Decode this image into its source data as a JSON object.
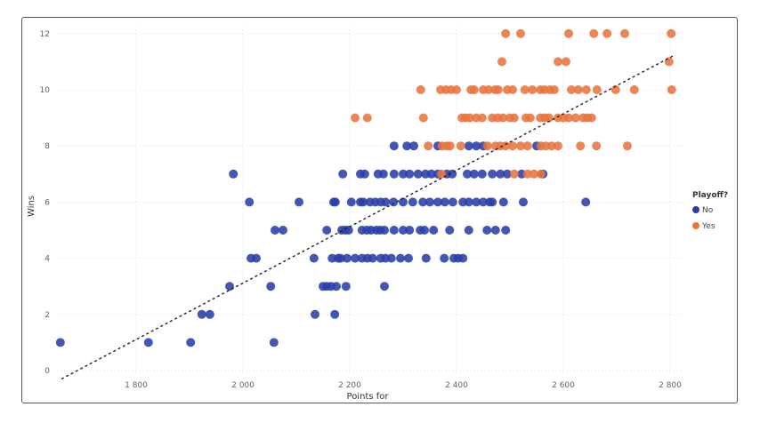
{
  "chart_data": {
    "type": "scatter",
    "xlabel": "Points for",
    "ylabel": "Wins",
    "xlim": [
      1650,
      2820
    ],
    "ylim": [
      0,
      12
    ],
    "x_ticks": [
      1800,
      2000,
      2200,
      2400,
      2600,
      2800
    ],
    "x_tick_labels": [
      "1 800",
      "2 000",
      "2 200",
      "2 400",
      "2 600",
      "2 800"
    ],
    "y_ticks": [
      0,
      2,
      4,
      6,
      8,
      10,
      12
    ],
    "y_tick_labels": [
      "0",
      "2",
      "4",
      "6",
      "8",
      "10",
      "12"
    ],
    "grid": true,
    "legend": {
      "title": "Playoff?",
      "placement": "right",
      "entries": [
        "No",
        "Yes"
      ]
    },
    "colors": {
      "No": "#2a3fa8",
      "Yes": "#e8743f"
    },
    "trendline": {
      "x": [
        1660,
        2805
      ],
      "y": [
        -0.3,
        11.2
      ],
      "style": "dashed"
    },
    "series": [
      {
        "name": "No",
        "points": [
          [
            1658,
            1
          ],
          [
            1823,
            1
          ],
          [
            1902,
            1
          ],
          [
            2058,
            1
          ],
          [
            1923,
            2
          ],
          [
            1938,
            2
          ],
          [
            2135,
            2
          ],
          [
            2172,
            2
          ],
          [
            1975,
            3
          ],
          [
            2052,
            3
          ],
          [
            2150,
            3
          ],
          [
            2157,
            3
          ],
          [
            2165,
            3
          ],
          [
            2175,
            3
          ],
          [
            2193,
            3
          ],
          [
            2265,
            3
          ],
          [
            2015,
            4
          ],
          [
            2025,
            4
          ],
          [
            2133,
            4
          ],
          [
            2167,
            4
          ],
          [
            2178,
            4
          ],
          [
            2183,
            4
          ],
          [
            2195,
            4
          ],
          [
            2210,
            4
          ],
          [
            2223,
            4
          ],
          [
            2233,
            4
          ],
          [
            2243,
            4
          ],
          [
            2258,
            4
          ],
          [
            2267,
            4
          ],
          [
            2278,
            4
          ],
          [
            2295,
            4
          ],
          [
            2310,
            4
          ],
          [
            2343,
            4
          ],
          [
            2377,
            4
          ],
          [
            2395,
            4
          ],
          [
            2403,
            4
          ],
          [
            2412,
            4
          ],
          [
            2060,
            5
          ],
          [
            2075,
            5
          ],
          [
            2157,
            5
          ],
          [
            2185,
            5
          ],
          [
            2192,
            5
          ],
          [
            2198,
            5
          ],
          [
            2223,
            5
          ],
          [
            2232,
            5
          ],
          [
            2240,
            5
          ],
          [
            2250,
            5
          ],
          [
            2257,
            5
          ],
          [
            2265,
            5
          ],
          [
            2283,
            5
          ],
          [
            2300,
            5
          ],
          [
            2312,
            5
          ],
          [
            2332,
            5
          ],
          [
            2340,
            5
          ],
          [
            2357,
            5
          ],
          [
            2387,
            5
          ],
          [
            2423,
            5
          ],
          [
            2457,
            5
          ],
          [
            2473,
            5
          ],
          [
            2492,
            5
          ],
          [
            2012,
            6
          ],
          [
            2105,
            6
          ],
          [
            2170,
            6
          ],
          [
            2173,
            6
          ],
          [
            2203,
            6
          ],
          [
            2220,
            6
          ],
          [
            2225,
            6
          ],
          [
            2238,
            6
          ],
          [
            2248,
            6
          ],
          [
            2258,
            6
          ],
          [
            2267,
            6
          ],
          [
            2282,
            6
          ],
          [
            2300,
            6
          ],
          [
            2318,
            6
          ],
          [
            2337,
            6
          ],
          [
            2350,
            6
          ],
          [
            2365,
            6
          ],
          [
            2378,
            6
          ],
          [
            2393,
            6
          ],
          [
            2412,
            6
          ],
          [
            2423,
            6
          ],
          [
            2437,
            6
          ],
          [
            2450,
            6
          ],
          [
            2462,
            6
          ],
          [
            2467,
            6
          ],
          [
            2488,
            6
          ],
          [
            2525,
            6
          ],
          [
            2642,
            6
          ],
          [
            1982,
            7
          ],
          [
            2187,
            7
          ],
          [
            2220,
            7
          ],
          [
            2228,
            7
          ],
          [
            2253,
            7
          ],
          [
            2263,
            7
          ],
          [
            2283,
            7
          ],
          [
            2300,
            7
          ],
          [
            2312,
            7
          ],
          [
            2328,
            7
          ],
          [
            2342,
            7
          ],
          [
            2353,
            7
          ],
          [
            2365,
            7
          ],
          [
            2382,
            7
          ],
          [
            2392,
            7
          ],
          [
            2420,
            7
          ],
          [
            2433,
            7
          ],
          [
            2448,
            7
          ],
          [
            2467,
            7
          ],
          [
            2482,
            7
          ],
          [
            2495,
            7
          ],
          [
            2522,
            7
          ],
          [
            2562,
            7
          ],
          [
            2283,
            8
          ],
          [
            2307,
            8
          ],
          [
            2320,
            8
          ],
          [
            2365,
            8
          ],
          [
            2423,
            8
          ],
          [
            2437,
            8
          ],
          [
            2450,
            8
          ],
          [
            2550,
            8
          ]
        ]
      },
      {
        "name": "Yes",
        "points": [
          [
            2372,
            7
          ],
          [
            2508,
            7
          ],
          [
            2533,
            7
          ],
          [
            2545,
            7
          ],
          [
            2558,
            7
          ],
          [
            2347,
            8
          ],
          [
            2373,
            8
          ],
          [
            2382,
            8
          ],
          [
            2388,
            8
          ],
          [
            2408,
            8
          ],
          [
            2458,
            8
          ],
          [
            2473,
            8
          ],
          [
            2482,
            8
          ],
          [
            2492,
            8
          ],
          [
            2505,
            8
          ],
          [
            2520,
            8
          ],
          [
            2533,
            8
          ],
          [
            2558,
            8
          ],
          [
            2567,
            8
          ],
          [
            2578,
            8
          ],
          [
            2590,
            8
          ],
          [
            2632,
            8
          ],
          [
            2662,
            8
          ],
          [
            2720,
            8
          ],
          [
            2210,
            9
          ],
          [
            2233,
            9
          ],
          [
            2338,
            9
          ],
          [
            2410,
            9
          ],
          [
            2417,
            9
          ],
          [
            2425,
            9
          ],
          [
            2437,
            9
          ],
          [
            2448,
            9
          ],
          [
            2467,
            9
          ],
          [
            2477,
            9
          ],
          [
            2487,
            9
          ],
          [
            2500,
            9
          ],
          [
            2508,
            9
          ],
          [
            2530,
            9
          ],
          [
            2538,
            9
          ],
          [
            2557,
            9
          ],
          [
            2565,
            9
          ],
          [
            2573,
            9
          ],
          [
            2590,
            9
          ],
          [
            2600,
            9
          ],
          [
            2610,
            9
          ],
          [
            2623,
            9
          ],
          [
            2637,
            9
          ],
          [
            2645,
            9
          ],
          [
            2653,
            9
          ],
          [
            2333,
            10
          ],
          [
            2370,
            10
          ],
          [
            2380,
            10
          ],
          [
            2390,
            10
          ],
          [
            2400,
            10
          ],
          [
            2427,
            10
          ],
          [
            2433,
            10
          ],
          [
            2450,
            10
          ],
          [
            2460,
            10
          ],
          [
            2472,
            10
          ],
          [
            2478,
            10
          ],
          [
            2495,
            10
          ],
          [
            2505,
            10
          ],
          [
            2528,
            10
          ],
          [
            2542,
            10
          ],
          [
            2557,
            10
          ],
          [
            2565,
            10
          ],
          [
            2575,
            10
          ],
          [
            2583,
            10
          ],
          [
            2615,
            10
          ],
          [
            2628,
            10
          ],
          [
            2643,
            10
          ],
          [
            2663,
            10
          ],
          [
            2698,
            10
          ],
          [
            2733,
            10
          ],
          [
            2803,
            10
          ],
          [
            2485,
            11
          ],
          [
            2590,
            11
          ],
          [
            2605,
            11
          ],
          [
            2798,
            11
          ],
          [
            2492,
            12
          ],
          [
            2520,
            12
          ],
          [
            2610,
            12
          ],
          [
            2657,
            12
          ],
          [
            2682,
            12
          ],
          [
            2715,
            12
          ],
          [
            2802,
            12
          ]
        ]
      }
    ]
  }
}
